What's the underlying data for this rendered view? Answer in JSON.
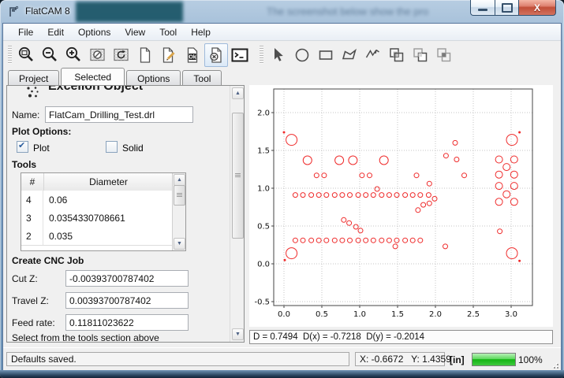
{
  "window": {
    "title": "FlatCAM 8"
  },
  "title_bar": {
    "bleed_text": "The screenshot below show the pro"
  },
  "menu": {
    "items": [
      "File",
      "Edit",
      "Options",
      "View",
      "Tool",
      "Help"
    ]
  },
  "toolbar": {
    "icons": [
      "zoom-fit",
      "zoom-out",
      "zoom-in",
      "clear-plot",
      "replot",
      "new-project",
      "editor",
      "save-object",
      "cancel-edit",
      "shell",
      "select-arrow",
      "draw-circle",
      "draw-rectangle",
      "draw-polygon",
      "draw-polyline",
      "union",
      "subtract",
      "intersect"
    ],
    "ok_icon_text": "Ok"
  },
  "tabs": {
    "items": [
      "Project",
      "Selected",
      "Options",
      "Tool"
    ],
    "active": "Selected"
  },
  "panel": {
    "heading": "Excellon Object",
    "name_label": "Name:",
    "name_value": "FlatCam_Drilling_Test.drl",
    "plot_options_label": "Plot Options:",
    "plot_checkbox": {
      "label": "Plot",
      "checked": true
    },
    "solid_checkbox": {
      "label": "Solid",
      "checked": false
    },
    "tools_label": "Tools",
    "table": {
      "headers": [
        "#",
        "Diameter"
      ],
      "rows": [
        [
          "4",
          "0.06"
        ],
        [
          "3",
          "0.0354330708661"
        ],
        [
          "2",
          "0.035"
        ]
      ]
    },
    "cnc_label": "Create CNC Job",
    "cut_z": {
      "label": "Cut Z:",
      "value": "-0.00393700787402"
    },
    "travel_z": {
      "label": "Travel Z:",
      "value": "0.00393700787402"
    },
    "feed_rate": {
      "label": "Feed rate:",
      "value": "0.11811023622"
    },
    "hint": "Select from the tools section above"
  },
  "plot_info": "D = 0.7494  D(x) = -0.7218  D(y) = -0.2014",
  "status": {
    "message": "Defaults saved.",
    "coords": "X: -0.6672   Y: 1.4359",
    "units": "[in]",
    "progress": "100%"
  },
  "chart_data": {
    "type": "scatter",
    "title": "",
    "xlabel": "",
    "ylabel": "",
    "xlim": [
      -0.135,
      3.28
    ],
    "ylim": [
      -0.55,
      2.31
    ],
    "xticks": [
      0.0,
      0.5,
      1.0,
      1.5,
      2.0,
      2.5,
      3.0
    ],
    "yticks": [
      -0.5,
      0.0,
      0.5,
      1.0,
      1.5,
      2.0
    ],
    "grid": true,
    "marker_color": "#ef2b2b",
    "point_format": "[x_in, y_in, marker_radius_px]",
    "points": [
      [
        0.1,
        1.64,
        7
      ],
      [
        3.01,
        1.64,
        7
      ],
      [
        0.1,
        0.14,
        7
      ],
      [
        3.01,
        0.14,
        7
      ],
      [
        0.0,
        1.74,
        1
      ],
      [
        3.11,
        1.74,
        1
      ],
      [
        0.01,
        0.05,
        1
      ],
      [
        3.11,
        0.04,
        1
      ],
      [
        0.31,
        1.37,
        5.5
      ],
      [
        0.73,
        1.37,
        5.5
      ],
      [
        0.91,
        1.37,
        5.5
      ],
      [
        1.32,
        1.37,
        5.5
      ],
      [
        0.43,
        1.17,
        3
      ],
      [
        0.53,
        1.17,
        3
      ],
      [
        1.03,
        1.17,
        3
      ],
      [
        1.13,
        1.17,
        3
      ],
      [
        1.75,
        1.17,
        3
      ],
      [
        2.38,
        1.17,
        3
      ],
      [
        2.26,
        1.6,
        3
      ],
      [
        2.14,
        1.43,
        3
      ],
      [
        2.28,
        1.38,
        3
      ],
      [
        1.23,
        0.99,
        3
      ],
      [
        1.92,
        1.06,
        3
      ],
      [
        0.15,
        0.91,
        3
      ],
      [
        0.25,
        0.91,
        3
      ],
      [
        0.36,
        0.91,
        3
      ],
      [
        0.46,
        0.91,
        3
      ],
      [
        0.56,
        0.91,
        3
      ],
      [
        0.67,
        0.91,
        3
      ],
      [
        0.77,
        0.91,
        3
      ],
      [
        0.87,
        0.91,
        3
      ],
      [
        0.98,
        0.91,
        3
      ],
      [
        1.08,
        0.91,
        3
      ],
      [
        1.18,
        0.91,
        3
      ],
      [
        1.29,
        0.91,
        3
      ],
      [
        1.39,
        0.91,
        3
      ],
      [
        1.49,
        0.91,
        3
      ],
      [
        1.6,
        0.91,
        3
      ],
      [
        1.7,
        0.91,
        3
      ],
      [
        1.8,
        0.91,
        3
      ],
      [
        1.91,
        0.91,
        3
      ],
      [
        0.79,
        0.58,
        3
      ],
      [
        0.86,
        0.54,
        3
      ],
      [
        0.95,
        0.49,
        3
      ],
      [
        1.01,
        0.44,
        3
      ],
      [
        1.77,
        0.71,
        3
      ],
      [
        1.84,
        0.78,
        3
      ],
      [
        1.92,
        0.8,
        3
      ],
      [
        1.99,
        0.86,
        3
      ],
      [
        0.15,
        0.31,
        3
      ],
      [
        0.25,
        0.31,
        3
      ],
      [
        0.36,
        0.31,
        3
      ],
      [
        0.46,
        0.31,
        3
      ],
      [
        0.56,
        0.31,
        3
      ],
      [
        0.67,
        0.31,
        3
      ],
      [
        0.77,
        0.31,
        3
      ],
      [
        0.87,
        0.31,
        3
      ],
      [
        0.98,
        0.31,
        3
      ],
      [
        1.08,
        0.31,
        3
      ],
      [
        1.18,
        0.31,
        3
      ],
      [
        1.29,
        0.31,
        3
      ],
      [
        1.39,
        0.31,
        3
      ],
      [
        1.49,
        0.31,
        3
      ],
      [
        1.6,
        0.31,
        3
      ],
      [
        1.7,
        0.31,
        3
      ],
      [
        1.8,
        0.31,
        3
      ],
      [
        1.47,
        0.23,
        3
      ],
      [
        2.13,
        0.23,
        3
      ],
      [
        2.84,
        1.38,
        4.5
      ],
      [
        3.04,
        1.38,
        4.5
      ],
      [
        2.94,
        1.28,
        4.5
      ],
      [
        2.84,
        1.18,
        4.5
      ],
      [
        3.04,
        1.18,
        4.5
      ],
      [
        2.84,
        1.03,
        4.5
      ],
      [
        3.04,
        1.03,
        4.5
      ],
      [
        2.94,
        0.92,
        4.5
      ],
      [
        2.84,
        0.82,
        4.5
      ],
      [
        3.04,
        0.82,
        4.5
      ],
      [
        2.85,
        0.43,
        3
      ]
    ]
  }
}
